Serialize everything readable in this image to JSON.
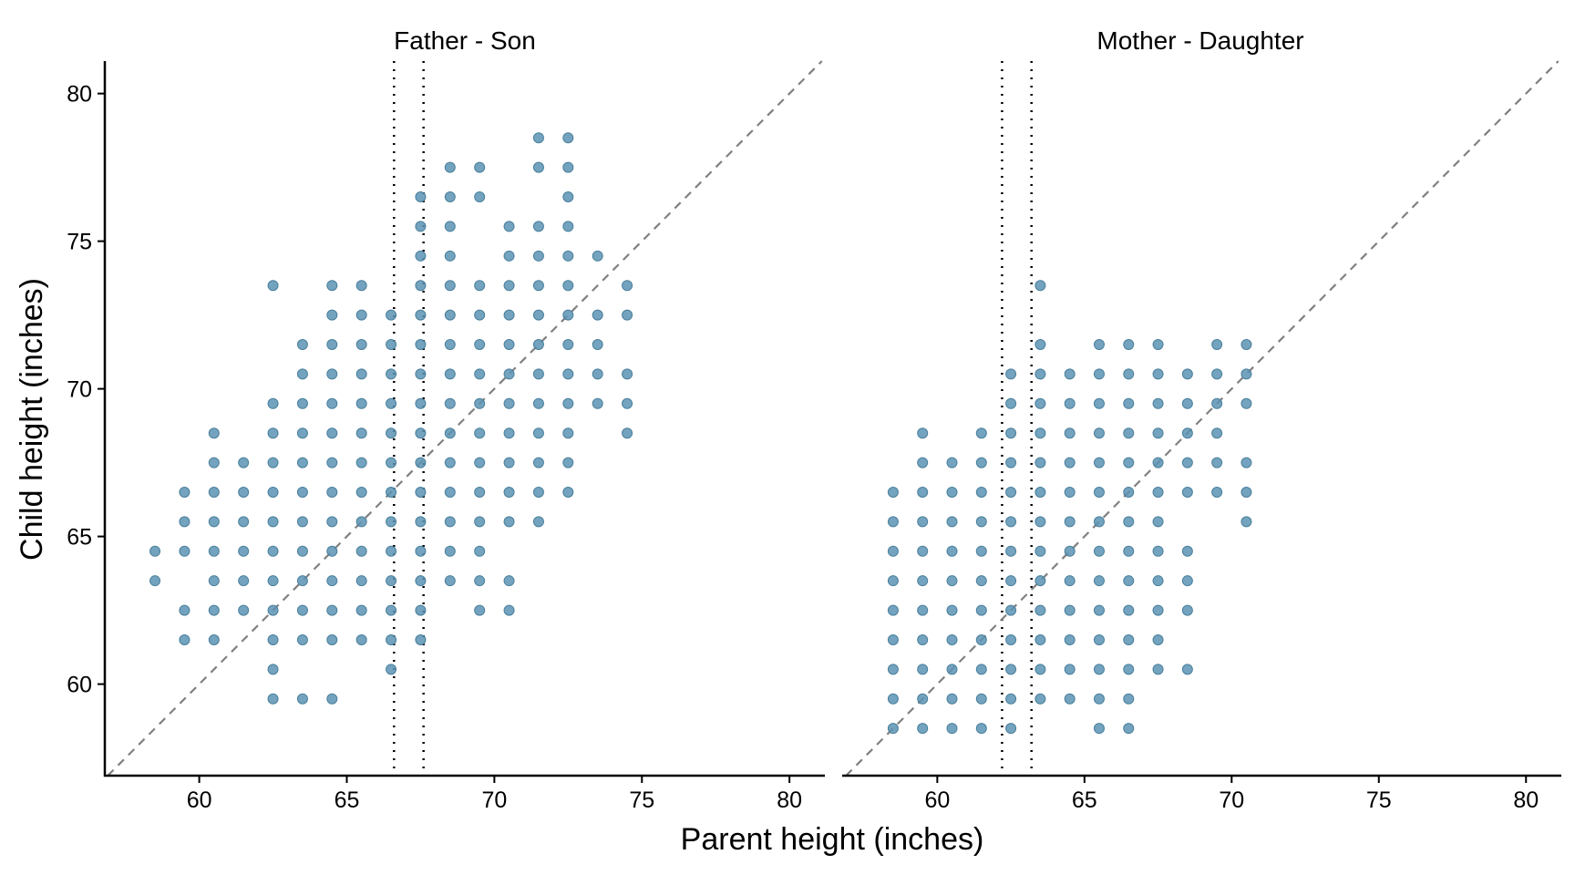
{
  "chart_data": {
    "type": "scatter",
    "xlabel": "Parent height (inches)",
    "ylabel": "Child height (inches)",
    "xlim": [
      56.8,
      81.2
    ],
    "ylim": [
      56.9,
      81.1
    ],
    "x_ticks": [
      60,
      65,
      70,
      75,
      80
    ],
    "y_ticks": [
      60,
      65,
      70,
      75,
      80
    ],
    "grid": false,
    "point_color": "#5b93b3",
    "reference_line": "y = x",
    "panels": [
      {
        "title": "Father - Son",
        "vertical_lines": [
          66.6,
          67.6
        ],
        "columns": [
          {
            "x": 58.5,
            "y": [
              63.5,
              64.5
            ]
          },
          {
            "x": 59.5,
            "y": [
              61.5,
              62.5,
              64.5,
              65.5,
              66.5
            ]
          },
          {
            "x": 60.5,
            "y": [
              61.5,
              62.5,
              63.5,
              64.5,
              65.5,
              66.5,
              67.5,
              68.5
            ]
          },
          {
            "x": 61.5,
            "y": [
              62.5,
              63.5,
              64.5,
              65.5,
              66.5,
              67.5
            ]
          },
          {
            "x": 62.5,
            "y": [
              59.5,
              60.5,
              61.5,
              62.5,
              63.5,
              64.5,
              65.5,
              66.5,
              67.5,
              68.5,
              69.5,
              73.5
            ]
          },
          {
            "x": 63.5,
            "y": [
              59.5,
              61.5,
              62.5,
              63.5,
              64.5,
              65.5,
              66.5,
              67.5,
              68.5,
              69.5,
              70.5,
              71.5
            ]
          },
          {
            "x": 64.5,
            "y": [
              59.5,
              61.5,
              62.5,
              63.5,
              64.5,
              65.5,
              66.5,
              67.5,
              68.5,
              69.5,
              70.5,
              71.5,
              72.5,
              73.5
            ]
          },
          {
            "x": 65.5,
            "y": [
              61.5,
              62.5,
              63.5,
              64.5,
              65.5,
              66.5,
              67.5,
              68.5,
              69.5,
              70.5,
              71.5,
              72.5,
              73.5
            ]
          },
          {
            "x": 66.5,
            "y": [
              60.5,
              61.5,
              62.5,
              63.5,
              64.5,
              65.5,
              66.5,
              67.5,
              68.5,
              69.5,
              70.5,
              71.5,
              72.5
            ]
          },
          {
            "x": 67.5,
            "y": [
              61.5,
              62.5,
              63.5,
              64.5,
              65.5,
              66.5,
              67.5,
              68.5,
              69.5,
              70.5,
              71.5,
              72.5,
              73.5,
              74.5,
              75.5,
              76.5
            ]
          },
          {
            "x": 68.5,
            "y": [
              63.5,
              64.5,
              65.5,
              66.5,
              67.5,
              68.5,
              69.5,
              70.5,
              71.5,
              72.5,
              73.5,
              74.5,
              75.5,
              76.5,
              77.5
            ]
          },
          {
            "x": 69.5,
            "y": [
              62.5,
              63.5,
              64.5,
              65.5,
              66.5,
              67.5,
              68.5,
              69.5,
              70.5,
              71.5,
              72.5,
              73.5,
              76.5,
              77.5
            ]
          },
          {
            "x": 70.5,
            "y": [
              62.5,
              63.5,
              65.5,
              66.5,
              67.5,
              68.5,
              69.5,
              70.5,
              71.5,
              72.5,
              73.5,
              74.5,
              75.5
            ]
          },
          {
            "x": 71.5,
            "y": [
              65.5,
              66.5,
              67.5,
              68.5,
              69.5,
              70.5,
              71.5,
              72.5,
              73.5,
              74.5,
              75.5,
              77.5,
              78.5
            ]
          },
          {
            "x": 72.5,
            "y": [
              66.5,
              67.5,
              68.5,
              69.5,
              70.5,
              71.5,
              72.5,
              73.5,
              74.5,
              75.5,
              76.5,
              77.5,
              78.5
            ]
          },
          {
            "x": 73.5,
            "y": [
              69.5,
              70.5,
              71.5,
              72.5,
              74.5
            ]
          },
          {
            "x": 74.5,
            "y": [
              68.5,
              69.5,
              70.5,
              72.5,
              73.5
            ]
          }
        ]
      },
      {
        "title": "Mother - Daughter",
        "vertical_lines": [
          62.2,
          63.2
        ],
        "columns": [
          {
            "x": 58.5,
            "y": [
              58.5,
              59.5,
              60.5,
              61.5,
              62.5,
              63.5,
              64.5,
              65.5,
              66.5
            ]
          },
          {
            "x": 59.5,
            "y": [
              58.5,
              59.5,
              60.5,
              61.5,
              62.5,
              63.5,
              64.5,
              65.5,
              66.5,
              67.5,
              68.5
            ]
          },
          {
            "x": 60.5,
            "y": [
              58.5,
              59.5,
              60.5,
              61.5,
              62.5,
              63.5,
              64.5,
              65.5,
              66.5,
              67.5
            ]
          },
          {
            "x": 61.5,
            "y": [
              58.5,
              59.5,
              60.5,
              61.5,
              62.5,
              63.5,
              64.5,
              65.5,
              66.5,
              67.5,
              68.5
            ]
          },
          {
            "x": 62.5,
            "y": [
              58.5,
              59.5,
              60.5,
              61.5,
              62.5,
              63.5,
              64.5,
              65.5,
              66.5,
              67.5,
              68.5,
              69.5,
              70.5
            ]
          },
          {
            "x": 63.5,
            "y": [
              59.5,
              60.5,
              61.5,
              62.5,
              63.5,
              64.5,
              65.5,
              66.5,
              67.5,
              68.5,
              69.5,
              70.5,
              71.5,
              73.5
            ]
          },
          {
            "x": 64.5,
            "y": [
              59.5,
              60.5,
              61.5,
              62.5,
              63.5,
              64.5,
              65.5,
              66.5,
              67.5,
              68.5,
              69.5,
              70.5
            ]
          },
          {
            "x": 65.5,
            "y": [
              58.5,
              59.5,
              60.5,
              61.5,
              62.5,
              63.5,
              64.5,
              65.5,
              66.5,
              67.5,
              68.5,
              69.5,
              70.5,
              71.5
            ]
          },
          {
            "x": 66.5,
            "y": [
              58.5,
              59.5,
              60.5,
              61.5,
              62.5,
              63.5,
              64.5,
              65.5,
              66.5,
              67.5,
              68.5,
              69.5,
              70.5,
              71.5
            ]
          },
          {
            "x": 67.5,
            "y": [
              60.5,
              61.5,
              62.5,
              63.5,
              64.5,
              65.5,
              66.5,
              67.5,
              68.5,
              69.5,
              70.5,
              71.5
            ]
          },
          {
            "x": 68.5,
            "y": [
              60.5,
              62.5,
              63.5,
              64.5,
              66.5,
              67.5,
              68.5,
              69.5,
              70.5
            ]
          },
          {
            "x": 69.5,
            "y": [
              66.5,
              67.5,
              68.5,
              69.5,
              70.5,
              71.5
            ]
          },
          {
            "x": 70.5,
            "y": [
              65.5,
              66.5,
              67.5,
              69.5,
              70.5,
              71.5
            ]
          }
        ]
      }
    ]
  }
}
